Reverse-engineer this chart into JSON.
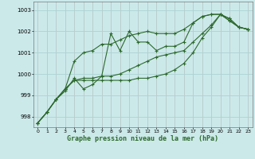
{
  "title": "Graphe pression niveau de la mer (hPa)",
  "background_color": "#cce9ea",
  "grid_color": "#aed4d4",
  "line_color": "#2d6a2d",
  "xlim": [
    -0.5,
    23.5
  ],
  "ylim": [
    997.5,
    1003.4
  ],
  "yticks": [
    998,
    999,
    1000,
    1001,
    1002,
    1003
  ],
  "xticks": [
    0,
    1,
    2,
    3,
    4,
    5,
    6,
    7,
    8,
    9,
    10,
    11,
    12,
    13,
    14,
    15,
    16,
    17,
    18,
    19,
    20,
    21,
    22,
    23
  ],
  "series": [
    [
      997.7,
      998.2,
      998.8,
      999.2,
      999.8,
      999.3,
      999.5,
      999.9,
      1001.9,
      1001.1,
      1002.0,
      1001.5,
      1001.5,
      1001.1,
      1001.3,
      1001.3,
      1001.5,
      1002.4,
      1002.7,
      1002.8,
      1002.8,
      1002.5,
      1002.2,
      1002.1
    ],
    [
      997.7,
      998.2,
      998.8,
      999.3,
      1000.6,
      1001.0,
      1001.1,
      1001.4,
      1001.4,
      1001.6,
      1001.8,
      1001.9,
      1002.0,
      1001.9,
      1001.9,
      1001.9,
      1002.1,
      1002.4,
      1002.7,
      1002.8,
      1002.8,
      1002.5,
      1002.2,
      1002.1
    ],
    [
      997.7,
      998.2,
      998.8,
      999.3,
      999.7,
      999.8,
      999.8,
      999.9,
      999.9,
      1000.0,
      1000.2,
      1000.4,
      1000.6,
      1000.8,
      1000.9,
      1001.0,
      1001.1,
      1001.5,
      1001.9,
      1002.3,
      1002.8,
      1002.6,
      1002.2,
      1002.1
    ],
    [
      997.7,
      998.2,
      998.8,
      999.3,
      999.7,
      999.7,
      999.7,
      999.7,
      999.7,
      999.7,
      999.7,
      999.8,
      999.8,
      999.9,
      1000.0,
      1000.2,
      1000.5,
      1001.0,
      1001.7,
      1002.2,
      1002.8,
      1002.6,
      1002.2,
      1002.1
    ]
  ]
}
